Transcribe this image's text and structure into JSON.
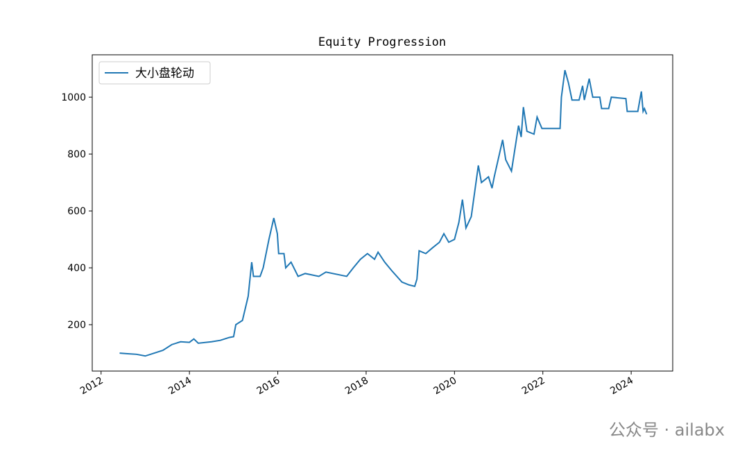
{
  "chart_data": {
    "type": "line",
    "title": "Equity Progression",
    "x": [
      2012.42,
      2012.6,
      2012.8,
      2013.0,
      2013.2,
      2013.4,
      2013.6,
      2013.8,
      2014.0,
      2014.1,
      2014.2,
      2014.5,
      2014.7,
      2014.9,
      2015.0,
      2015.05,
      2015.2,
      2015.33,
      2015.41,
      2015.45,
      2015.6,
      2015.67,
      2015.8,
      2015.91,
      2015.99,
      2016.02,
      2016.14,
      2016.18,
      2016.3,
      2016.46,
      2016.62,
      2016.93,
      2017.09,
      2017.56,
      2017.71,
      2017.87,
      2018.03,
      2018.19,
      2018.27,
      2018.42,
      2018.58,
      2018.81,
      2018.97,
      2019.1,
      2019.15,
      2019.2,
      2019.35,
      2019.5,
      2019.66,
      2019.76,
      2019.87,
      2020.0,
      2020.1,
      2020.18,
      2020.26,
      2020.38,
      2020.54,
      2020.61,
      2020.77,
      2020.85,
      2020.9,
      2021.09,
      2021.16,
      2021.29,
      2021.45,
      2021.51,
      2021.56,
      2021.64,
      2021.8,
      2021.87,
      2021.98,
      2022.39,
      2022.42,
      2022.5,
      2022.58,
      2022.66,
      2022.82,
      2022.9,
      2022.94,
      2023.05,
      2023.13,
      2023.29,
      2023.33,
      2023.49,
      2023.55,
      2023.88,
      2023.91,
      2024.15,
      2024.23,
      2024.27,
      2024.3,
      2024.35
    ],
    "series": [
      {
        "name": "大小盘轮动",
        "color": "#1f77b4",
        "values": [
          100,
          98,
          96,
          90,
          100,
          110,
          130,
          140,
          138,
          150,
          135,
          140,
          145,
          155,
          158,
          200,
          215,
          300,
          420,
          370,
          370,
          400,
          500,
          575,
          520,
          450,
          450,
          400,
          420,
          370,
          380,
          370,
          385,
          370,
          400,
          430,
          450,
          430,
          455,
          420,
          390,
          350,
          340,
          335,
          360,
          460,
          450,
          470,
          490,
          520,
          490,
          500,
          560,
          640,
          540,
          580,
          760,
          700,
          720,
          680,
          720,
          850,
          780,
          740,
          900,
          860,
          965,
          880,
          870,
          930,
          890,
          890,
          1000,
          1095,
          1050,
          990,
          990,
          1040,
          990,
          1065,
          1000,
          1000,
          960,
          960,
          1000,
          995,
          950,
          950,
          1020,
          950,
          960,
          940
        ]
      }
    ],
    "xlim": [
      2011.8,
      2024.94
    ],
    "xticks": [
      2012,
      2014,
      2016,
      2018,
      2020,
      2022,
      2024
    ],
    "ylim": [
      37,
      1149
    ],
    "yticks": [
      200,
      400,
      600,
      800,
      1000
    ],
    "legend": "upper left"
  },
  "watermark": "公众号 · ailabx"
}
